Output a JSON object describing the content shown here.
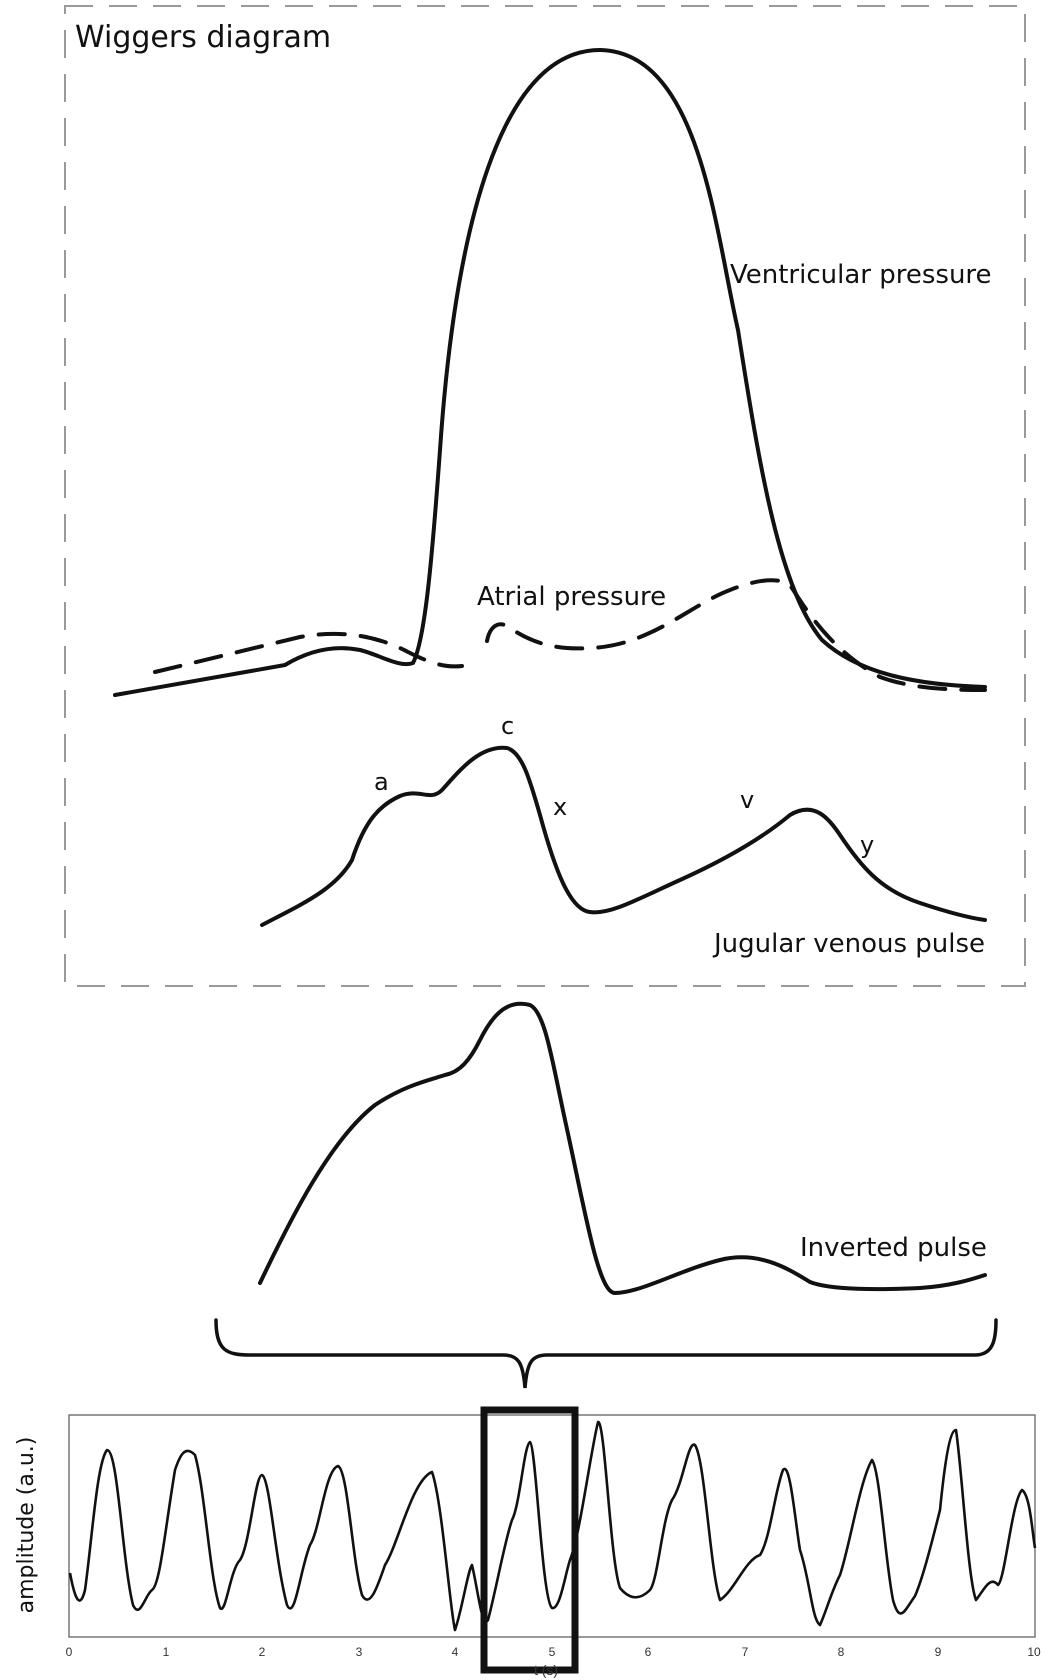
{
  "diagram": {
    "title": "Wiggers diagram",
    "labels": {
      "ventricular": "Ventricular pressure",
      "atrial": "Atrial pressure",
      "jvp": "Jugular venous pulse",
      "inverted": "Inverted pulse"
    },
    "waves": {
      "a": "a",
      "c": "c",
      "x": "x",
      "v": "v",
      "y": "y"
    }
  },
  "signal_chart": {
    "ylabel": "amplitude (a.u.)",
    "xlabel": "t (s)",
    "xlim": [
      0,
      10
    ],
    "xticks": [
      "0",
      "1",
      "2",
      "3",
      "4",
      "5",
      "6",
      "7",
      "8",
      "9",
      "10"
    ],
    "highlight_window": [
      4.2,
      5.2
    ]
  },
  "colors": {
    "line": "#111111",
    "dashed_frame": "#9a9a9a",
    "axis": "#444444"
  }
}
